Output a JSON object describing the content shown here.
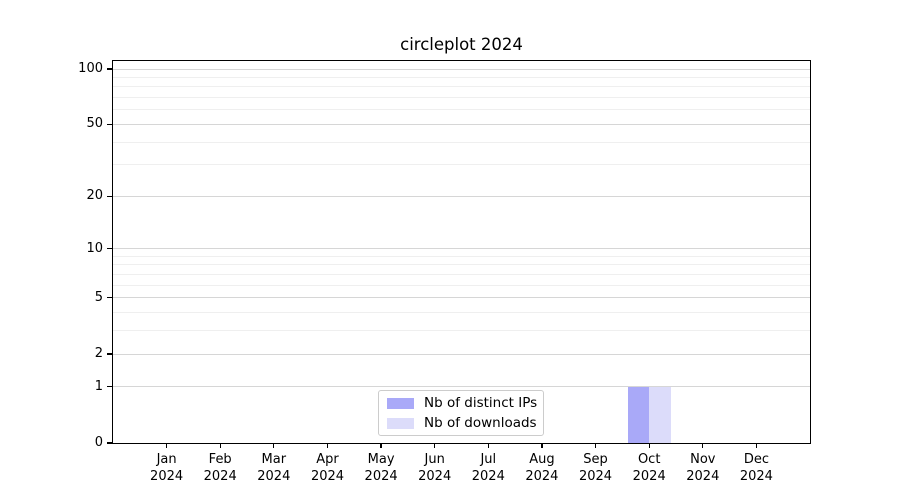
{
  "title": "circleplot 2024",
  "chart_data": {
    "type": "bar",
    "title": "circleplot 2024",
    "xlabel": "",
    "ylabel": "",
    "months": [
      "Jan",
      "Feb",
      "Mar",
      "Apr",
      "May",
      "Jun",
      "Jul",
      "Aug",
      "Sep",
      "Oct",
      "Nov",
      "Dec"
    ],
    "year": "2024",
    "yscale": "log1p",
    "ylim": [
      0,
      110.5
    ],
    "y_major_ticks": [
      0,
      1,
      2,
      5,
      10,
      20,
      50,
      100
    ],
    "y_minor_ticks": [
      3,
      4,
      6,
      7,
      8,
      9,
      30,
      40,
      60,
      70,
      80,
      90
    ],
    "grid": "horizontal",
    "legend_position": "bottom-center",
    "series": [
      {
        "name": "Nb of distinct IPs",
        "color": "#a9a9f8",
        "values": [
          0,
          0,
          0,
          0,
          0,
          0,
          0,
          0,
          0,
          1,
          0,
          0
        ]
      },
      {
        "name": "Nb of downloads",
        "color": "#dcdcfa",
        "values": [
          0,
          0,
          0,
          0,
          0,
          0,
          0,
          0,
          0,
          1,
          0,
          0
        ]
      }
    ],
    "colors": {
      "grid_major": "#d6d6d6",
      "grid_minor": "#efefef",
      "spine": "#000000",
      "background": "#ffffff",
      "text": "#000000"
    }
  }
}
